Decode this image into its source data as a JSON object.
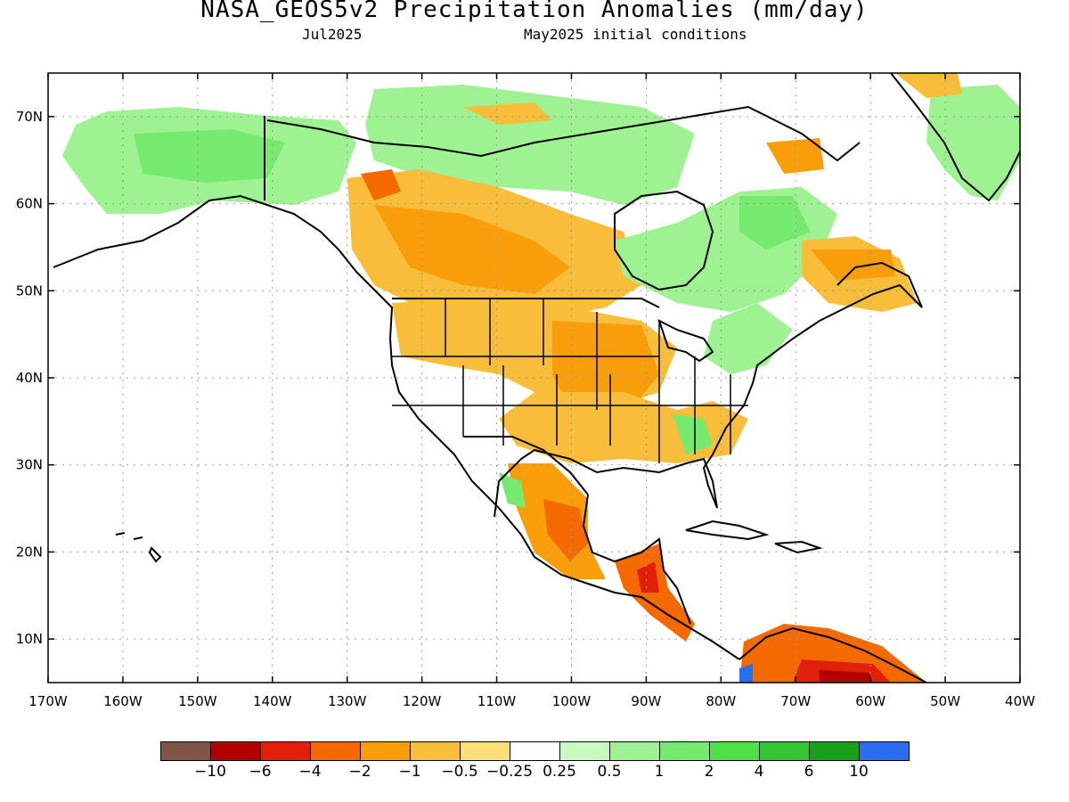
{
  "title": "NASA_GEOS5v2 Precipitation Anomalies (mm/day)",
  "subtitle_left": "Jul2025",
  "subtitle_right": "May2025 initial conditions",
  "map": {
    "lon_range": [
      -170,
      -40
    ],
    "lat_range": [
      5,
      75
    ],
    "lon_ticks": [
      -170,
      -160,
      -150,
      -140,
      -130,
      -120,
      -110,
      -100,
      -90,
      -80,
      -70,
      -60,
      -50,
      -40
    ],
    "lon_tick_labels": [
      "170W",
      "160W",
      "150W",
      "140W",
      "130W",
      "120W",
      "110W",
      "100W",
      "90W",
      "80W",
      "70W",
      "60W",
      "50W",
      "40W"
    ],
    "lat_ticks": [
      10,
      20,
      30,
      40,
      50,
      60,
      70
    ],
    "lat_tick_labels": [
      "10N",
      "20N",
      "30N",
      "40N",
      "50N",
      "60N",
      "70N"
    ],
    "grid": "dotted"
  },
  "colorbar": {
    "colors": [
      "#7f5547",
      "#b30000",
      "#e1200c",
      "#f56a00",
      "#f79e0a",
      "#f9bd3c",
      "#fbe07a",
      "#ffffff",
      "#c8f9be",
      "#9ef292",
      "#75ea6f",
      "#4fe04b",
      "#33c534",
      "#18a018",
      "#2a6ef0"
    ],
    "labels": [
      "−10",
      "−6",
      "−4",
      "−2",
      "−1",
      "−0.5",
      "−0.25",
      "0.25",
      "0.5",
      "1",
      "2",
      "4",
      "6",
      "10"
    ]
  }
}
